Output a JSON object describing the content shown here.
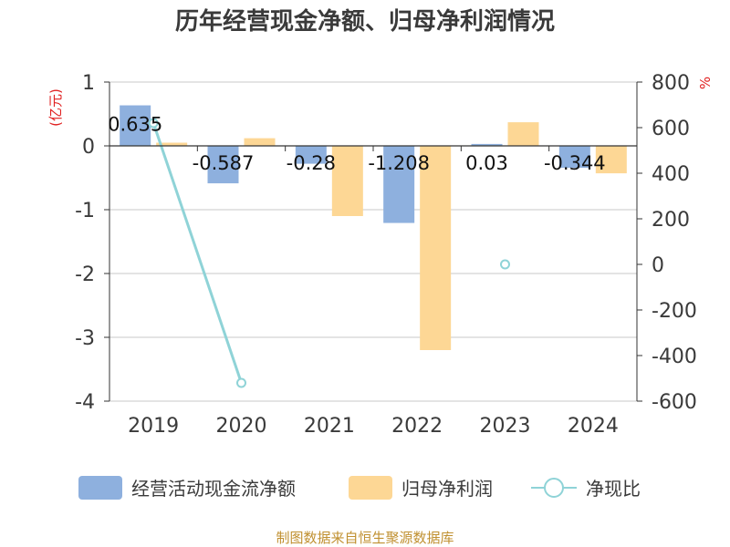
{
  "chart_data": {
    "type": "bar",
    "title": "历年经营现金净额、归母净利润情况",
    "categories": [
      "2019",
      "2020",
      "2021",
      "2022",
      "2023",
      "2024"
    ],
    "y_left": {
      "unit": "(亿元)",
      "ylim": [
        -4,
        1
      ],
      "ticks": [
        1,
        0,
        -1,
        -2,
        -3,
        -4
      ]
    },
    "y_right": {
      "unit": "%",
      "ylim": [
        -600,
        800
      ],
      "ticks": [
        800,
        600,
        400,
        200,
        0,
        -200,
        -400,
        -600
      ]
    },
    "series": [
      {
        "name": "经营活动现金流净额",
        "type": "bar",
        "axis": "left",
        "color": "#8eb0de",
        "values": [
          0.635,
          -0.587,
          -0.28,
          -1.208,
          0.03,
          -0.344
        ],
        "labels": [
          "0.635",
          "-0.587",
          "-0.28",
          "-1.208",
          "0.03",
          "-0.344"
        ]
      },
      {
        "name": "归母净利润",
        "type": "bar",
        "axis": "left",
        "color": "#fdd795",
        "values": [
          0.05,
          0.12,
          -1.1,
          -3.2,
          0.37,
          -0.43
        ]
      },
      {
        "name": "净现比",
        "type": "line",
        "axis": "right",
        "color": "#8fd3d7",
        "values": [
          620,
          -520,
          null,
          null,
          0,
          null
        ]
      }
    ],
    "grid": true,
    "legend_position": "bottom"
  },
  "footer": {
    "source": "制图数据来自恒生聚源数据库"
  }
}
